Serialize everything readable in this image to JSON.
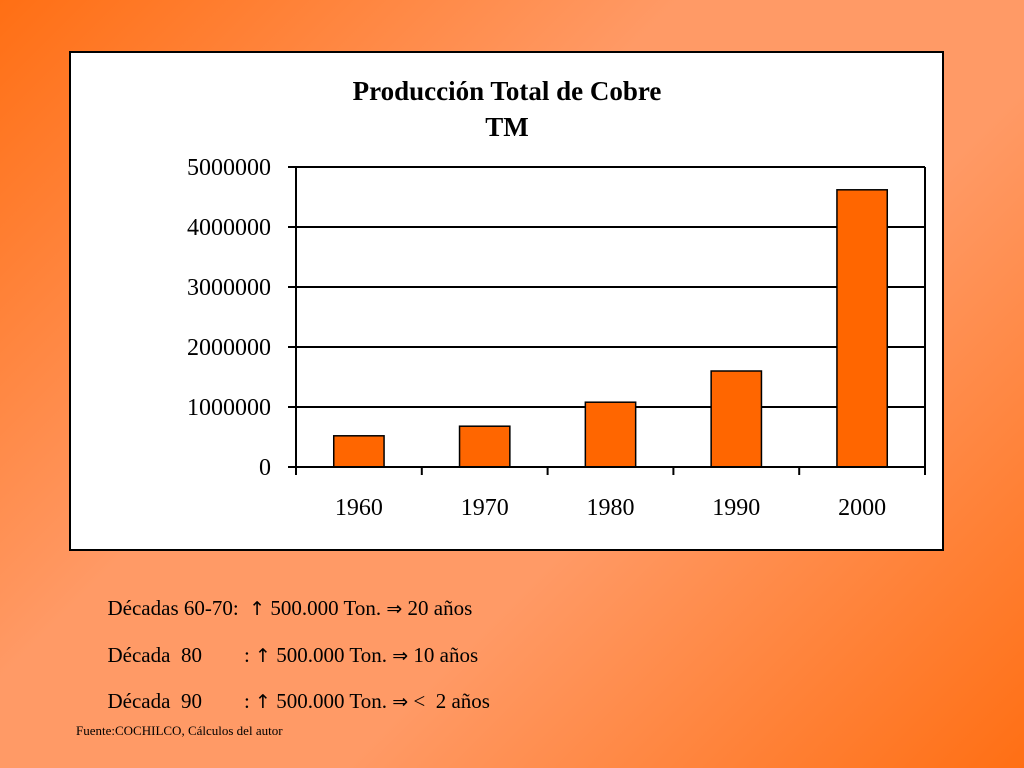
{
  "chart_data": {
    "type": "bar",
    "title": "Producción Total de  Cobre",
    "subtitle": "TM",
    "categories": [
      "1960",
      "1970",
      "1980",
      "1990",
      "2000"
    ],
    "values": [
      520000,
      680000,
      1080000,
      1600000,
      4620000
    ],
    "ylim": [
      0,
      5000000
    ],
    "yticks": [
      "0",
      "1000000",
      "2000000",
      "3000000",
      "4000000",
      "5000000"
    ],
    "grid": true,
    "bar_color": "#ff6600"
  },
  "notes": [
    {
      "period": "Décadas 60-70:",
      "sep": "",
      "arrow": "↑",
      "amount": "500.000 Ton.",
      "implies": "⇒",
      "time": "20 años"
    },
    {
      "period": "Década  80",
      "sep": ":",
      "arrow": "↑",
      "amount": "500.000 Ton.",
      "implies": "⇒",
      "time": "10 años"
    },
    {
      "period": "Década  90",
      "sep": ":",
      "arrow": "↑",
      "amount": "500.000 Ton.",
      "implies": "⇒",
      "time": "<  2 años"
    }
  ],
  "source": "Fuente:COCHILCO, Cálculos del autor"
}
